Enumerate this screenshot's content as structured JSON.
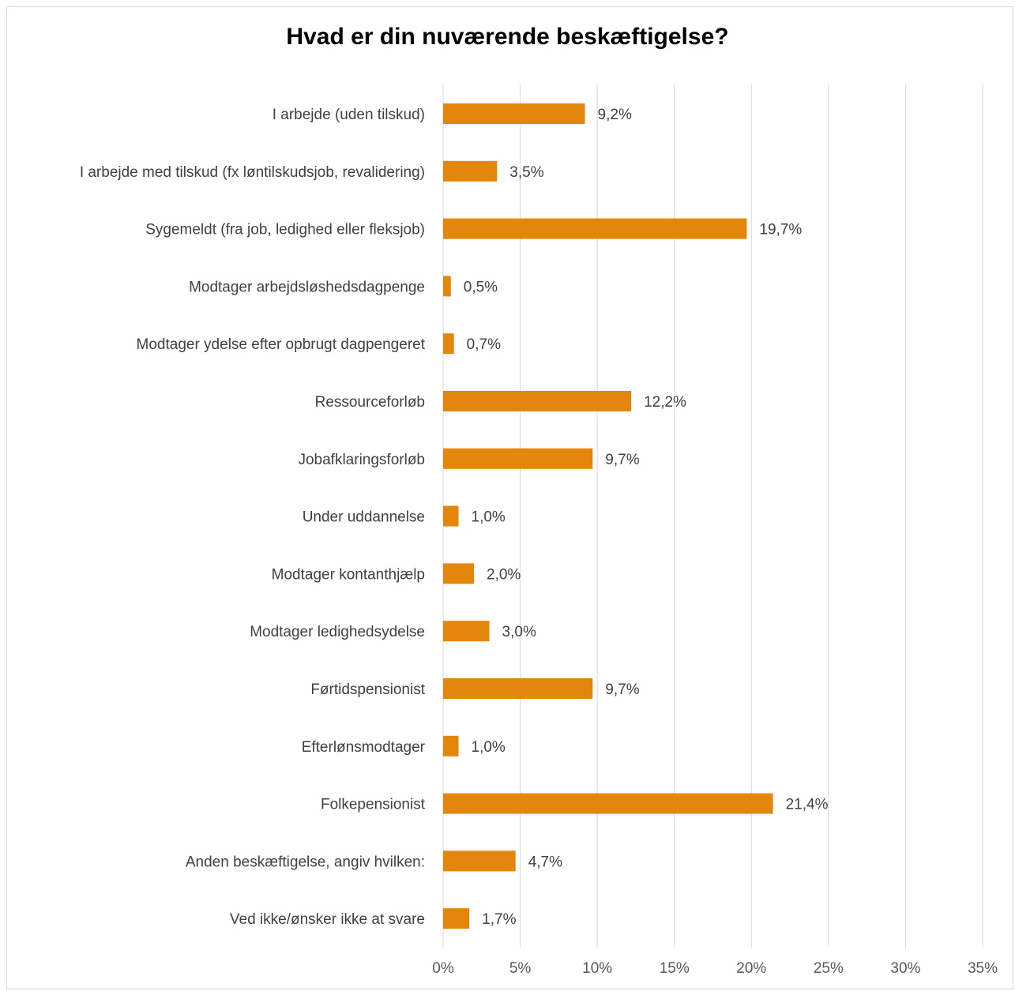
{
  "chart_data": {
    "type": "bar",
    "orientation": "horizontal",
    "title": "Hvad er din nuværende beskæftigelse?",
    "categories": [
      "I arbejde (uden tilskud)",
      "I arbejde med tilskud (fx løntilskudsjob, revalidering)",
      "Sygemeldt (fra job, ledighed eller fleksjob)",
      "Modtager arbejdsløshedsdagpenge",
      "Modtager ydelse efter opbrugt dagpengeret",
      "Ressourceforløb",
      "Jobafklaringsforløb",
      "Under uddannelse",
      "Modtager kontanthjælp",
      "Modtager ledighedsydelse",
      "Førtidspensionist",
      "Efterlønsmodtager",
      "Folkepensionist",
      "Anden beskæftigelse, angiv hvilken:",
      "Ved ikke/ønsker ikke at svare"
    ],
    "values": [
      9.2,
      3.5,
      19.7,
      0.5,
      0.7,
      12.2,
      9.7,
      1.0,
      2.0,
      3.0,
      9.7,
      1.0,
      21.4,
      4.7,
      1.7
    ],
    "value_labels": [
      "9,2%",
      "3,5%",
      "19,7%",
      "0,5%",
      "0,7%",
      "12,2%",
      "9,7%",
      "1,0%",
      "2,0%",
      "3,0%",
      "9,7%",
      "1,0%",
      "21,4%",
      "4,7%",
      "1,7%"
    ],
    "xlim": [
      0,
      35
    ],
    "xticks": [
      0,
      5,
      10,
      15,
      20,
      25,
      30,
      35
    ],
    "xtick_labels": [
      "0%",
      "5%",
      "10%",
      "15%",
      "20%",
      "25%",
      "30%",
      "35%"
    ],
    "grid": "vertical",
    "legend": "none",
    "bar_color": "#E3860B",
    "grid_color": "#d9d9d9"
  }
}
